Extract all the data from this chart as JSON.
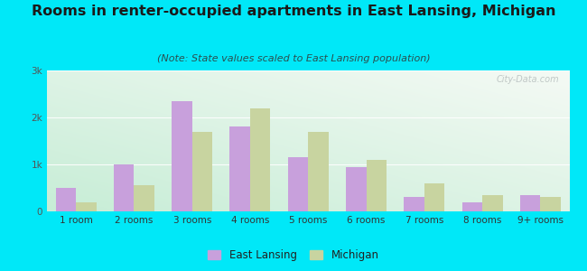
{
  "categories": [
    "1 room",
    "2 rooms",
    "3 rooms",
    "4 rooms",
    "5 rooms",
    "6 rooms",
    "7 rooms",
    "8 rooms",
    "9+ rooms"
  ],
  "east_lansing": [
    500,
    1000,
    2350,
    1800,
    1150,
    950,
    300,
    200,
    350
  ],
  "michigan": [
    200,
    550,
    1700,
    2200,
    1700,
    1100,
    600,
    350,
    300
  ],
  "el_color": "#c8a0dc",
  "mi_color": "#c8d4a0",
  "title": "Rooms in renter-occupied apartments in East Lansing, Michigan",
  "subtitle": "(Note: State values scaled to East Lansing population)",
  "bg_color": "#00e8f8",
  "ylim": [
    0,
    3000
  ],
  "yticks": [
    0,
    1000,
    2000,
    3000
  ],
  "ytick_labels": [
    "0",
    "1k",
    "2k",
    "3k"
  ],
  "legend_labels": [
    "East Lansing",
    "Michigan"
  ],
  "watermark": "City-Data.com",
  "title_fontsize": 11.5,
  "subtitle_fontsize": 8,
  "bar_width": 0.35
}
